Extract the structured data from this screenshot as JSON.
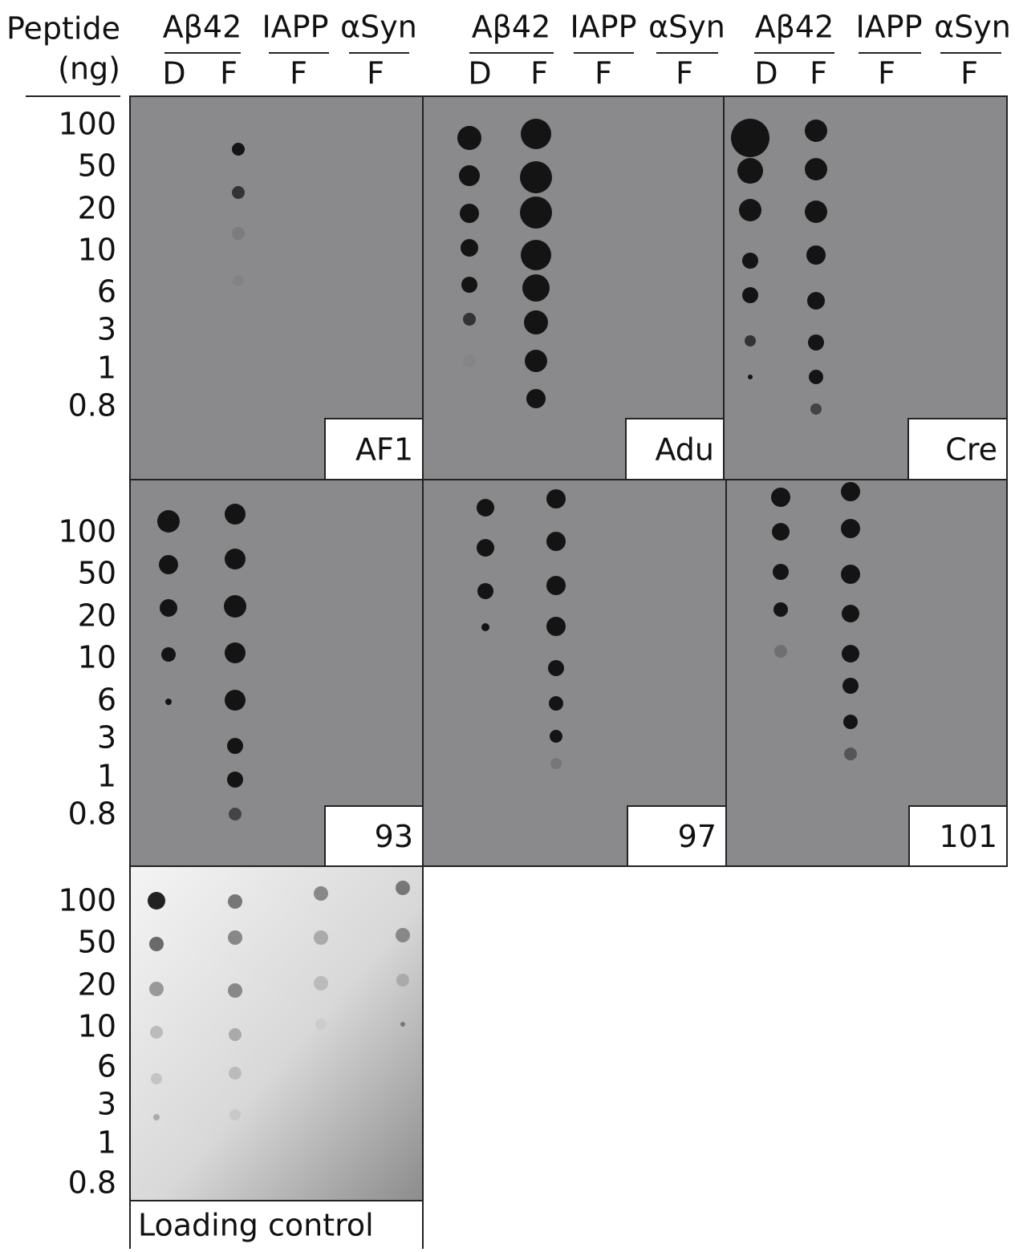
{
  "header": {
    "row_title": [
      "Peptide",
      "(ng)"
    ],
    "panel_columns": [
      {
        "groups": [
          {
            "peptide": "Aβ42",
            "forms": [
              "D",
              "F"
            ]
          },
          {
            "peptide": "IAPP",
            "forms": [
              "F"
            ]
          },
          {
            "peptide": "αSyn",
            "forms": [
              "F"
            ]
          }
        ]
      },
      {
        "groups": [
          {
            "peptide": "Aβ42",
            "forms": [
              "D",
              "F"
            ]
          },
          {
            "peptide": "IAPP",
            "forms": [
              "F"
            ]
          },
          {
            "peptide": "αSyn",
            "forms": [
              "F"
            ]
          }
        ]
      },
      {
        "groups": [
          {
            "peptide": "Aβ42",
            "forms": [
              "D",
              "F"
            ]
          },
          {
            "peptide": "IAPP",
            "forms": [
              "F"
            ]
          },
          {
            "peptide": "αSyn",
            "forms": [
              "F"
            ]
          }
        ]
      }
    ]
  },
  "rows": [
    {
      "amounts": [
        "100",
        "50",
        "20",
        "10",
        "6",
        "3",
        "1",
        "0.8"
      ],
      "panels": [
        "AF1",
        "Adu",
        "Cre"
      ]
    },
    {
      "amounts": [
        "100",
        "50",
        "20",
        "10",
        "6",
        "3",
        "1",
        "0.8"
      ],
      "panels": [
        "93",
        "97",
        "101"
      ]
    },
    {
      "amounts": [
        "100",
        "50",
        "20",
        "10",
        "6",
        "3",
        "1",
        "0.8"
      ],
      "panels": [
        "Loading control"
      ]
    }
  ]
}
